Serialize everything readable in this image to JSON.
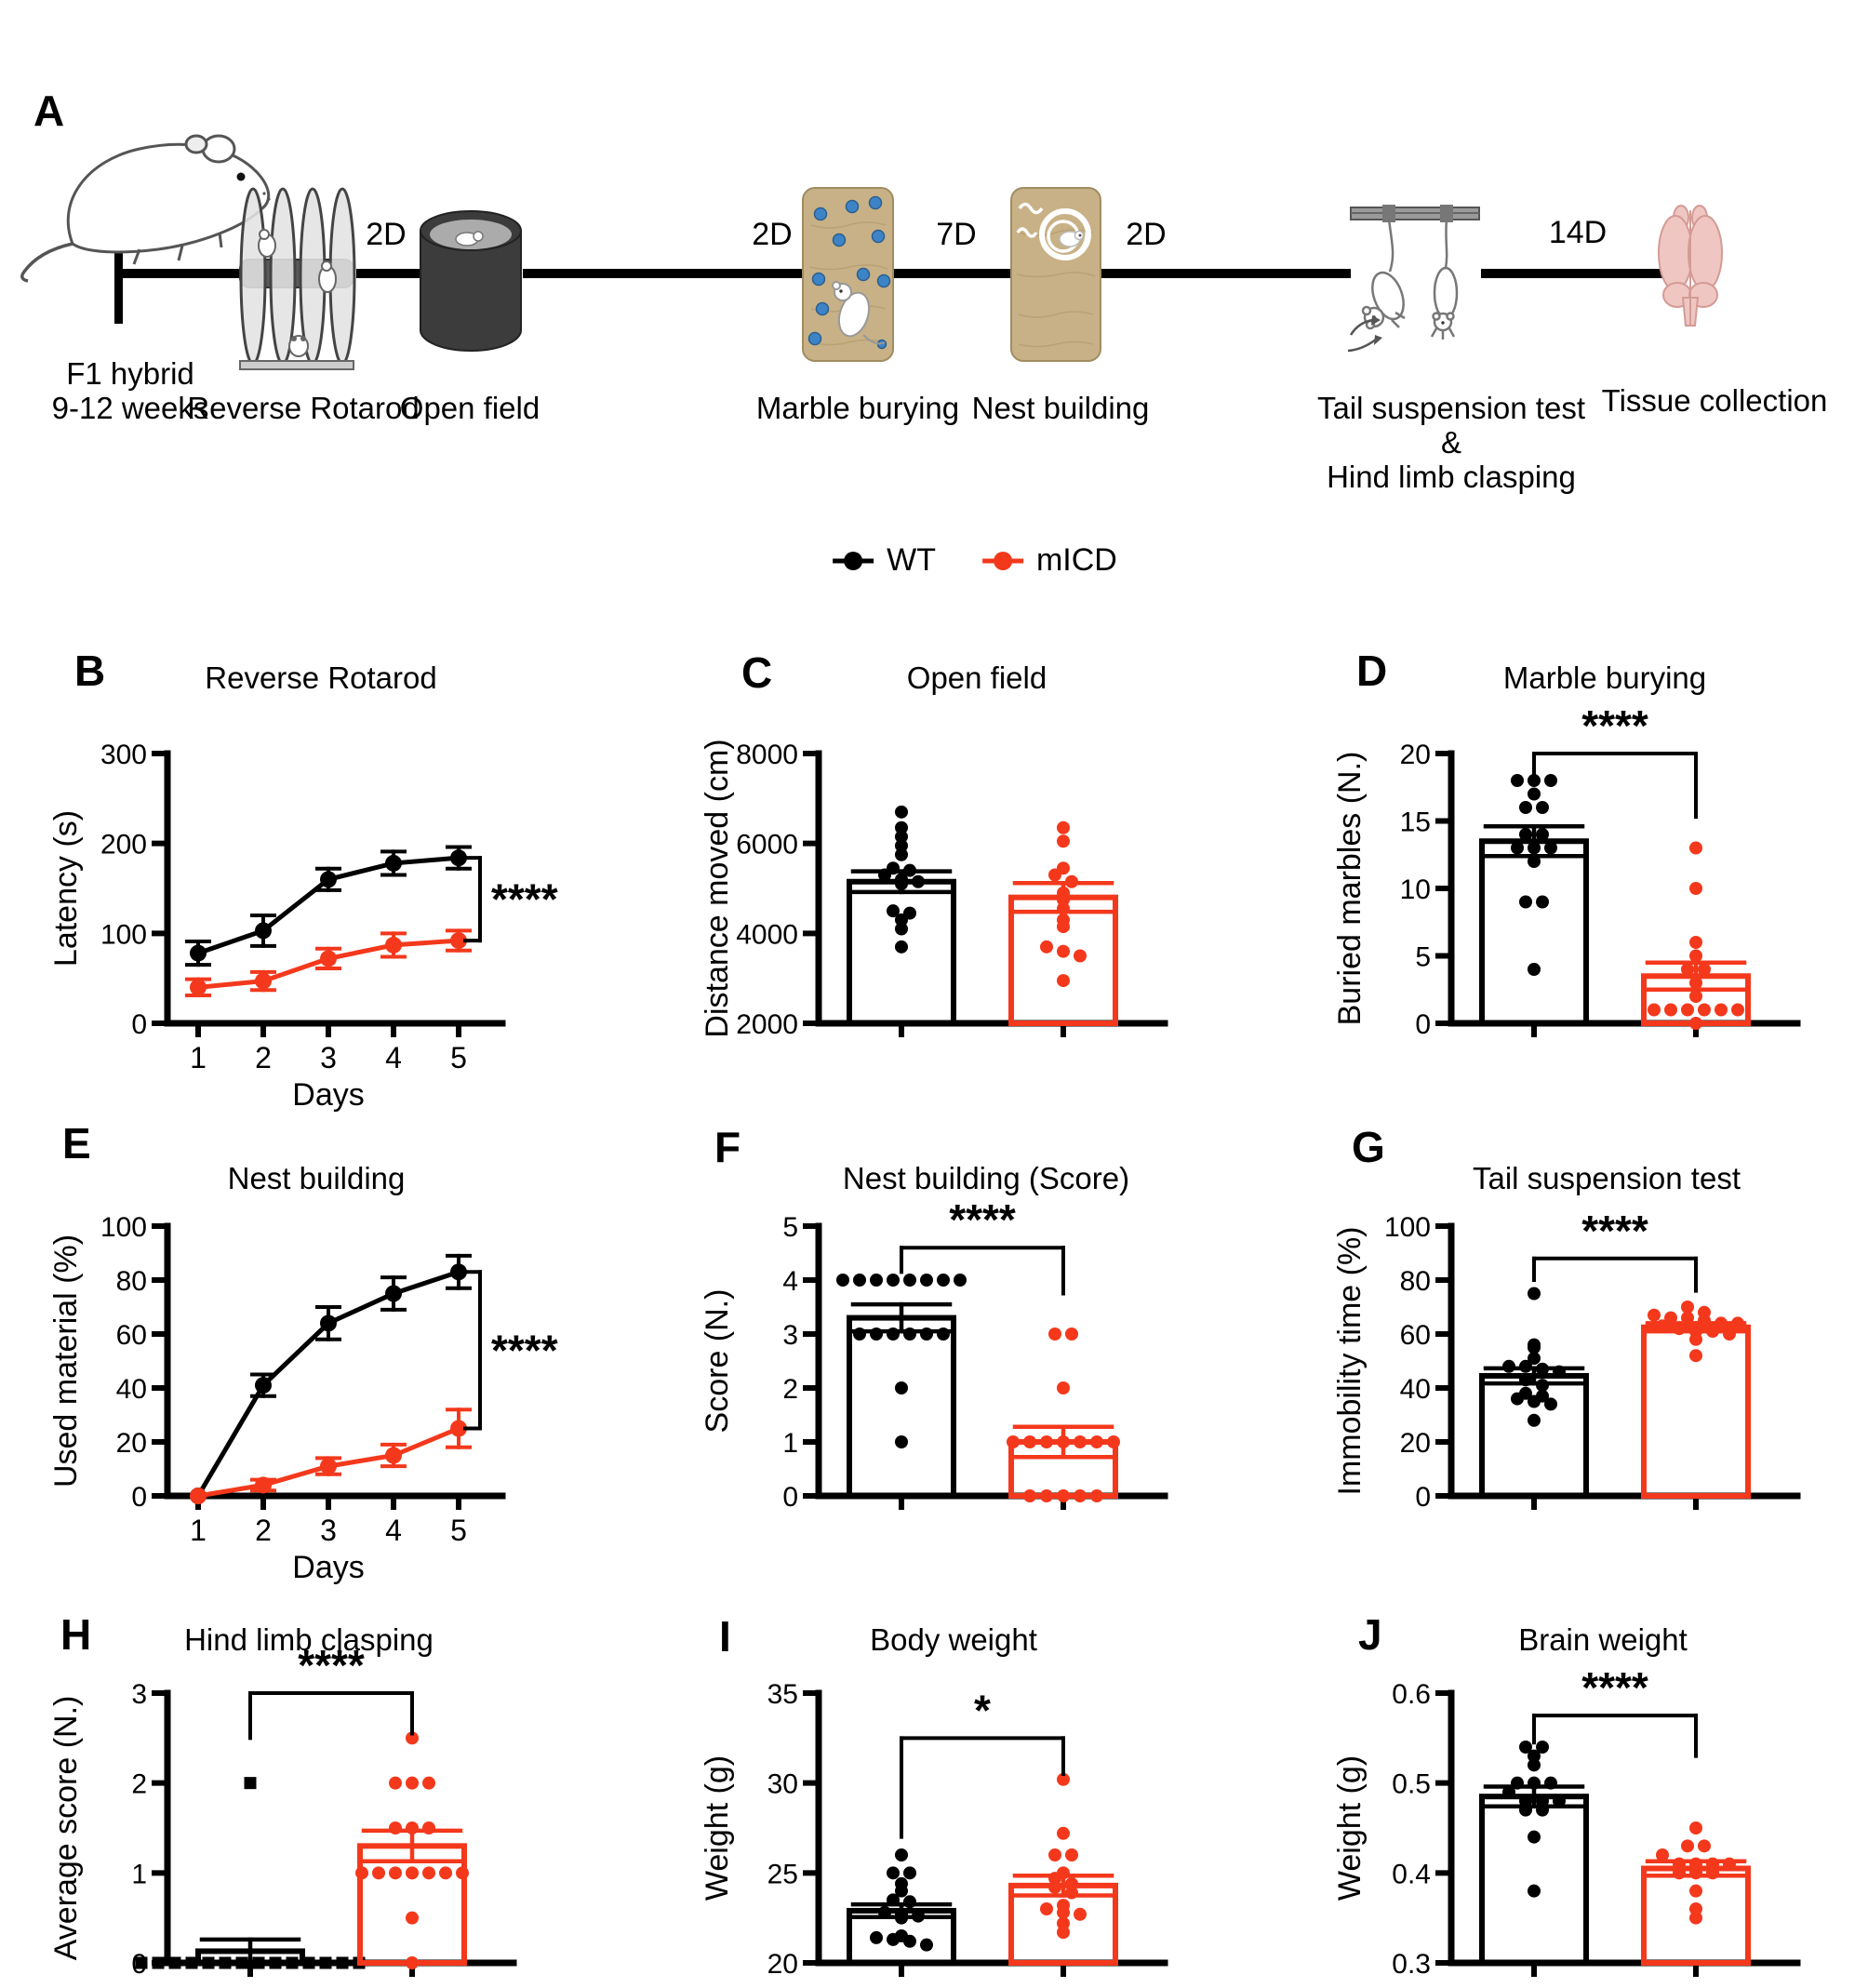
{
  "panel_a": {
    "letter": "A",
    "cohort_line1": "F1 hybrid",
    "cohort_line2": "9-12 weeks",
    "intervals": [
      "2D",
      "2D",
      "7D",
      "2D",
      "14D"
    ],
    "tests": [
      "Reverse Rotarod",
      "Open field",
      "Marble burying",
      "Nest building",
      "Tail suspension test",
      "&",
      "Hind limb clasping",
      "Tissue collection"
    ]
  },
  "legend": {
    "series": [
      {
        "label": "WT",
        "color": "#000000"
      },
      {
        "label": "mICD",
        "color": "#F4381C"
      }
    ]
  },
  "chart_data": [
    {
      "panel": "B",
      "title": "Reverse Rotarod",
      "type": "line",
      "xlabel": "Days",
      "ylabel": "Latency (s)",
      "x": [
        1,
        2,
        3,
        4,
        5
      ],
      "ylim": [
        0,
        300
      ],
      "yticks": [
        0,
        100,
        200,
        300
      ],
      "series": [
        {
          "name": "WT",
          "color": "#000000",
          "values": [
            78,
            103,
            160,
            178,
            184
          ],
          "errors": [
            13,
            17,
            12,
            13,
            12
          ]
        },
        {
          "name": "mICD",
          "color": "#F4381C",
          "values": [
            40,
            47,
            72,
            87,
            92
          ],
          "errors": [
            9,
            10,
            11,
            13,
            11
          ]
        }
      ],
      "significance": {
        "label": "****",
        "bracket_top": 184,
        "bracket_bottom": 92
      }
    },
    {
      "panel": "C",
      "title": "Open field",
      "type": "bar-scatter",
      "ylabel": "Distance moved (cm)",
      "ylim": [
        2000,
        8000
      ],
      "yticks": [
        2000,
        4000,
        6000,
        8000
      ],
      "groups": [
        {
          "name": "WT",
          "color": "#000000",
          "mean": 5150,
          "sem": 230,
          "points": [
            6700,
            6350,
            6150,
            5950,
            5750,
            5450,
            5400,
            5300,
            5200,
            5150,
            5100,
            4500,
            4450,
            4300,
            4100,
            3700
          ]
        },
        {
          "name": "mICD",
          "color": "#F4381C",
          "mean": 4800,
          "sem": 320,
          "points": [
            6350,
            6050,
            5450,
            5300,
            5150,
            4900,
            4750,
            4550,
            4300,
            4150,
            3700,
            3600,
            3500,
            2950
          ]
        }
      ],
      "significance": null
    },
    {
      "panel": "D",
      "title": "Marble burying",
      "type": "bar-scatter",
      "ylabel": "Buried marbles (N.)",
      "ylim": [
        0,
        20
      ],
      "yticks": [
        0,
        5,
        10,
        15,
        20
      ],
      "groups": [
        {
          "name": "WT",
          "color": "#000000",
          "mean": 13.5,
          "sem": 1.1,
          "points": [
            18,
            18,
            18,
            17,
            16,
            16,
            14,
            14,
            13,
            13,
            13,
            12,
            9,
            9,
            4
          ]
        },
        {
          "name": "mICD",
          "color": "#F4381C",
          "mean": 3.5,
          "sem": 1.0,
          "points": [
            13,
            10,
            6,
            5,
            4,
            4,
            3,
            2,
            1,
            1,
            1,
            1,
            1,
            1,
            0
          ]
        }
      ],
      "significance": {
        "label": "****",
        "y": 20,
        "drop_left": 2.2,
        "drop_right": 4.7
      }
    },
    {
      "panel": "E",
      "title": "Nest building",
      "type": "line",
      "xlabel": "Days",
      "ylabel": "Used material (%)",
      "x": [
        1,
        2,
        3,
        4,
        5
      ],
      "ylim": [
        0,
        100
      ],
      "yticks": [
        0,
        20,
        40,
        60,
        80,
        100
      ],
      "series": [
        {
          "name": "WT",
          "color": "#000000",
          "values": [
            0,
            41,
            64,
            75,
            83
          ],
          "errors": [
            0,
            4,
            6,
            6,
            6
          ]
        },
        {
          "name": "mICD",
          "color": "#F4381C",
          "values": [
            0,
            4,
            11,
            15,
            25
          ],
          "errors": [
            0,
            2,
            3,
            4,
            7
          ]
        }
      ],
      "significance": {
        "label": "****",
        "bracket_top": 83,
        "bracket_bottom": 25
      }
    },
    {
      "panel": "F",
      "title": "Nest building (Score)",
      "type": "bar-scatter",
      "ylabel": "Score (N.)",
      "ylim": [
        0,
        5
      ],
      "yticks": [
        0,
        1,
        2,
        3,
        4,
        5
      ],
      "groups": [
        {
          "name": "WT",
          "color": "#000000",
          "mean": 3.3,
          "sem": 0.25,
          "points": [
            4,
            4,
            4,
            4,
            4,
            4,
            4,
            4,
            3,
            3,
            3,
            3,
            3,
            3,
            2,
            1
          ]
        },
        {
          "name": "mICD",
          "color": "#F4381C",
          "mean": 1.0,
          "sem": 0.28,
          "points": [
            3,
            3,
            2,
            1,
            1,
            1,
            1,
            1,
            1,
            1,
            0,
            0,
            0,
            0,
            0
          ]
        }
      ],
      "significance": {
        "label": "****",
        "y": 4.6,
        "drop_left": 0.45,
        "drop_right": 0.85
      }
    },
    {
      "panel": "G",
      "title": "Tail suspension test",
      "type": "bar-scatter",
      "ylabel": "Immobility time (%)",
      "ylim": [
        0,
        100
      ],
      "yticks": [
        0,
        20,
        40,
        60,
        80,
        100
      ],
      "groups": [
        {
          "name": "WT",
          "color": "#000000",
          "mean": 44.5,
          "sem": 2.8,
          "points": [
            75,
            56,
            55,
            51,
            48,
            48,
            47,
            46,
            43,
            41,
            38,
            37,
            36,
            35,
            34,
            28
          ]
        },
        {
          "name": "mICD",
          "color": "#F4381C",
          "mean": 62.5,
          "sem": 1.5,
          "points": [
            70,
            68,
            67,
            66,
            66,
            65,
            64,
            64,
            63,
            62,
            61,
            61,
            60,
            58,
            52
          ]
        }
      ],
      "significance": {
        "label": "****",
        "y": 88,
        "drop_left": 8,
        "drop_right": 12
      }
    },
    {
      "panel": "H",
      "title": "Hind limb clasping",
      "type": "bar-scatter",
      "ylabel": "Average score (N.)",
      "ylim": [
        0,
        3
      ],
      "yticks": [
        0,
        1,
        2,
        3
      ],
      "groups": [
        {
          "name": "WT",
          "color": "#000000",
          "mean": 0.13,
          "sem": 0.13,
          "marker": "square",
          "points": [
            2,
            0,
            0,
            0,
            0,
            0,
            0,
            0,
            0,
            0,
            0,
            0,
            0,
            0,
            0
          ]
        },
        {
          "name": "mICD",
          "color": "#F4381C",
          "mean": 1.3,
          "sem": 0.17,
          "points": [
            2.5,
            2,
            2,
            2,
            1.5,
            1.5,
            1.5,
            1,
            1,
            1,
            1,
            1,
            1,
            1,
            0.5,
            0
          ]
        }
      ],
      "significance": {
        "label": "****",
        "y": 3.0,
        "drop_left": 0.5,
        "drop_right": 0.45
      }
    },
    {
      "panel": "I",
      "title": "Body weight",
      "type": "bar-scatter",
      "ylabel": "Weight (g)",
      "ylim": [
        20,
        35
      ],
      "yticks": [
        20,
        25,
        30,
        35
      ],
      "groups": [
        {
          "name": "WT",
          "color": "#000000",
          "mean": 22.9,
          "sem": 0.35,
          "points": [
            26,
            25,
            25,
            24.4,
            24,
            23.5,
            23.4,
            22.8,
            22.7,
            22.6,
            22.5,
            21.5,
            21.4,
            21.3,
            21.2,
            21
          ]
        },
        {
          "name": "mICD",
          "color": "#F4381C",
          "mean": 24.3,
          "sem": 0.55,
          "points": [
            30.2,
            27.2,
            26,
            26,
            25,
            24.7,
            24.4,
            24.2,
            23.9,
            23.2,
            23,
            22.8,
            22.7,
            22.2,
            21.7
          ]
        }
      ],
      "significance": {
        "label": "*",
        "y": 32.5,
        "drop_left": 5.5,
        "drop_right": 2.0
      }
    },
    {
      "panel": "J",
      "title": "Brain weight",
      "type": "bar-scatter",
      "ylabel": "Weight (g)",
      "ylim": [
        0.3,
        0.6
      ],
      "yticks": [
        0.3,
        0.4,
        0.5,
        0.6
      ],
      "groups": [
        {
          "name": "WT",
          "color": "#000000",
          "mean": 0.485,
          "sem": 0.011,
          "points": [
            0.54,
            0.54,
            0.53,
            0.52,
            0.5,
            0.5,
            0.5,
            0.49,
            0.48,
            0.48,
            0.48,
            0.47,
            0.47,
            0.44,
            0.38
          ]
        },
        {
          "name": "mICD",
          "color": "#F4381C",
          "mean": 0.405,
          "sem": 0.008,
          "points": [
            0.45,
            0.43,
            0.43,
            0.42,
            0.41,
            0.41,
            0.41,
            0.41,
            0.4,
            0.4,
            0.4,
            0.38,
            0.36,
            0.35
          ]
        }
      ],
      "significance": {
        "label": "****",
        "y": 0.575,
        "drop_left": 0.03,
        "drop_right": 0.045
      }
    }
  ]
}
